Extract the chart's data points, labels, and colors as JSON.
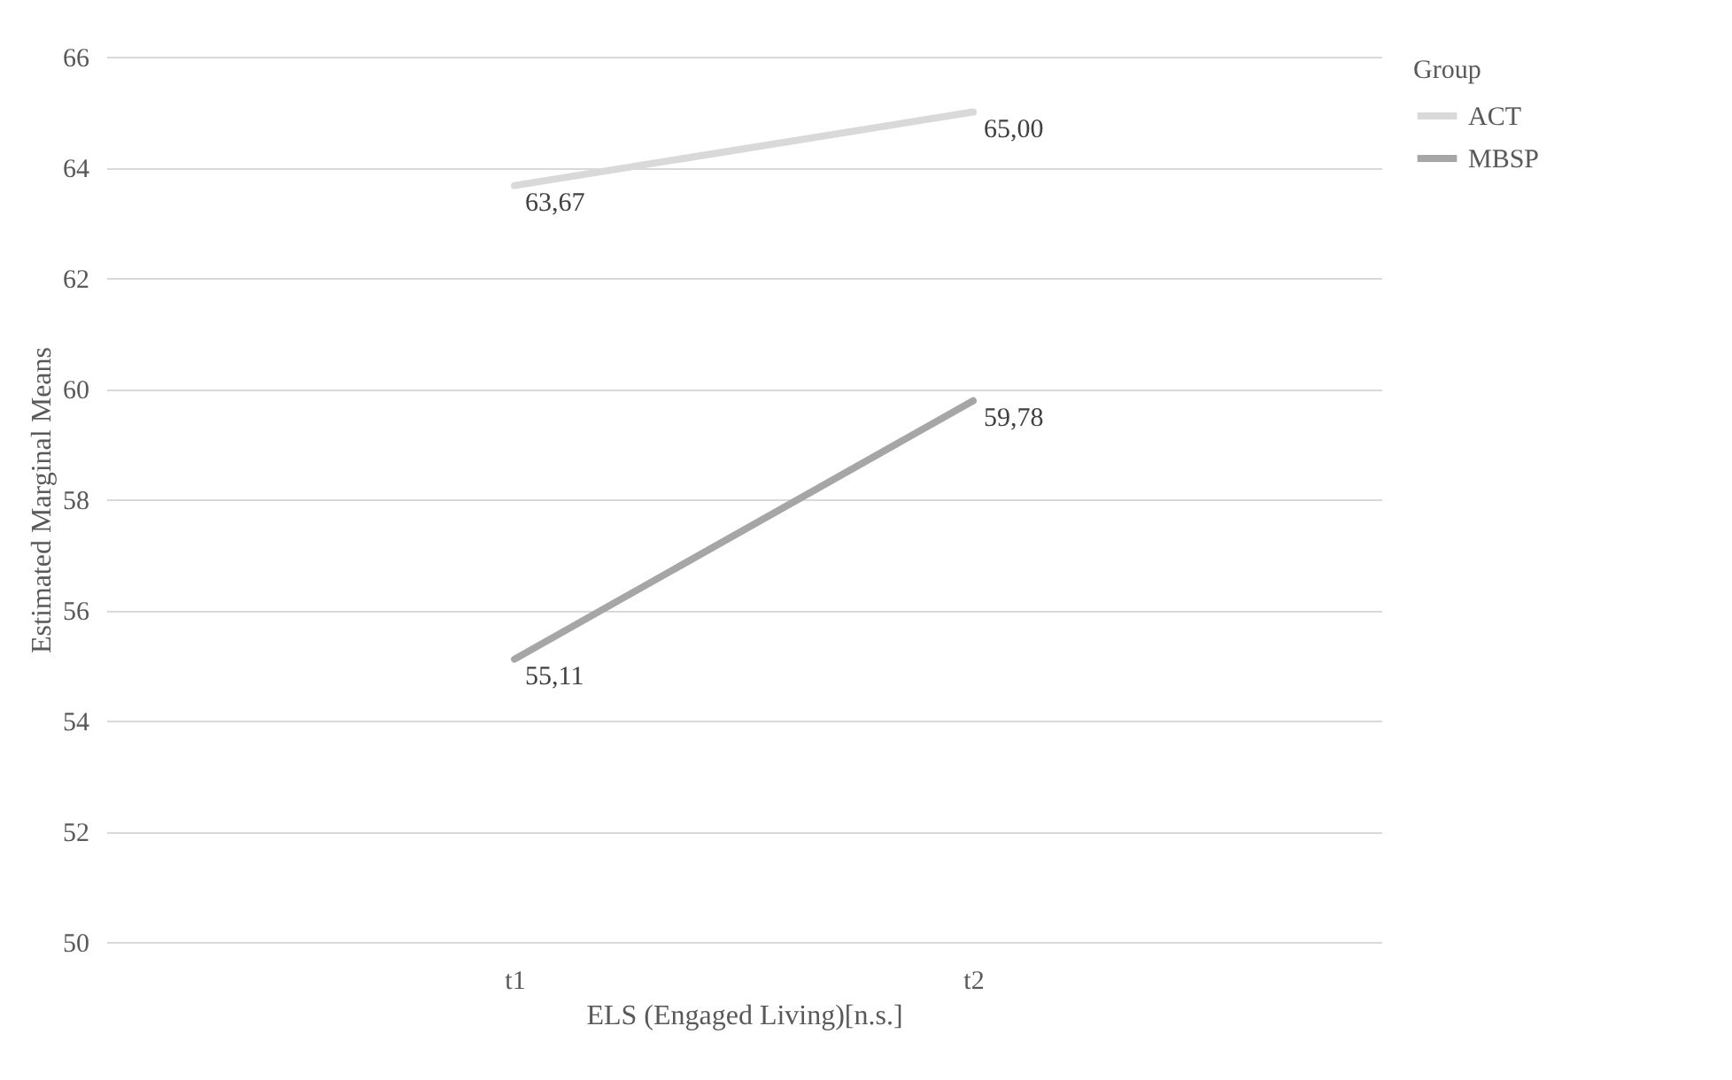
{
  "chart_data": {
    "type": "line",
    "xlabel": "ELS (Engaged Living)[n.s.]",
    "ylabel": "Estimated Marginal Means",
    "legend_title": "Group",
    "categories": [
      "t1",
      "t2"
    ],
    "series": [
      {
        "name": "ACT",
        "color": "#d9d9d9",
        "values": [
          63.67,
          65.0
        ],
        "value_labels": [
          "63,67",
          "65,00"
        ]
      },
      {
        "name": "MBSP",
        "color": "#a6a6a6",
        "values": [
          55.11,
          59.78
        ],
        "value_labels": [
          "55,11",
          "59,78"
        ]
      }
    ],
    "ylim": [
      50,
      66
    ],
    "yticks": [
      50,
      52,
      54,
      56,
      58,
      60,
      62,
      64,
      66
    ],
    "grid": "y",
    "legend": "right",
    "marker": "none",
    "line_style": "solid"
  }
}
